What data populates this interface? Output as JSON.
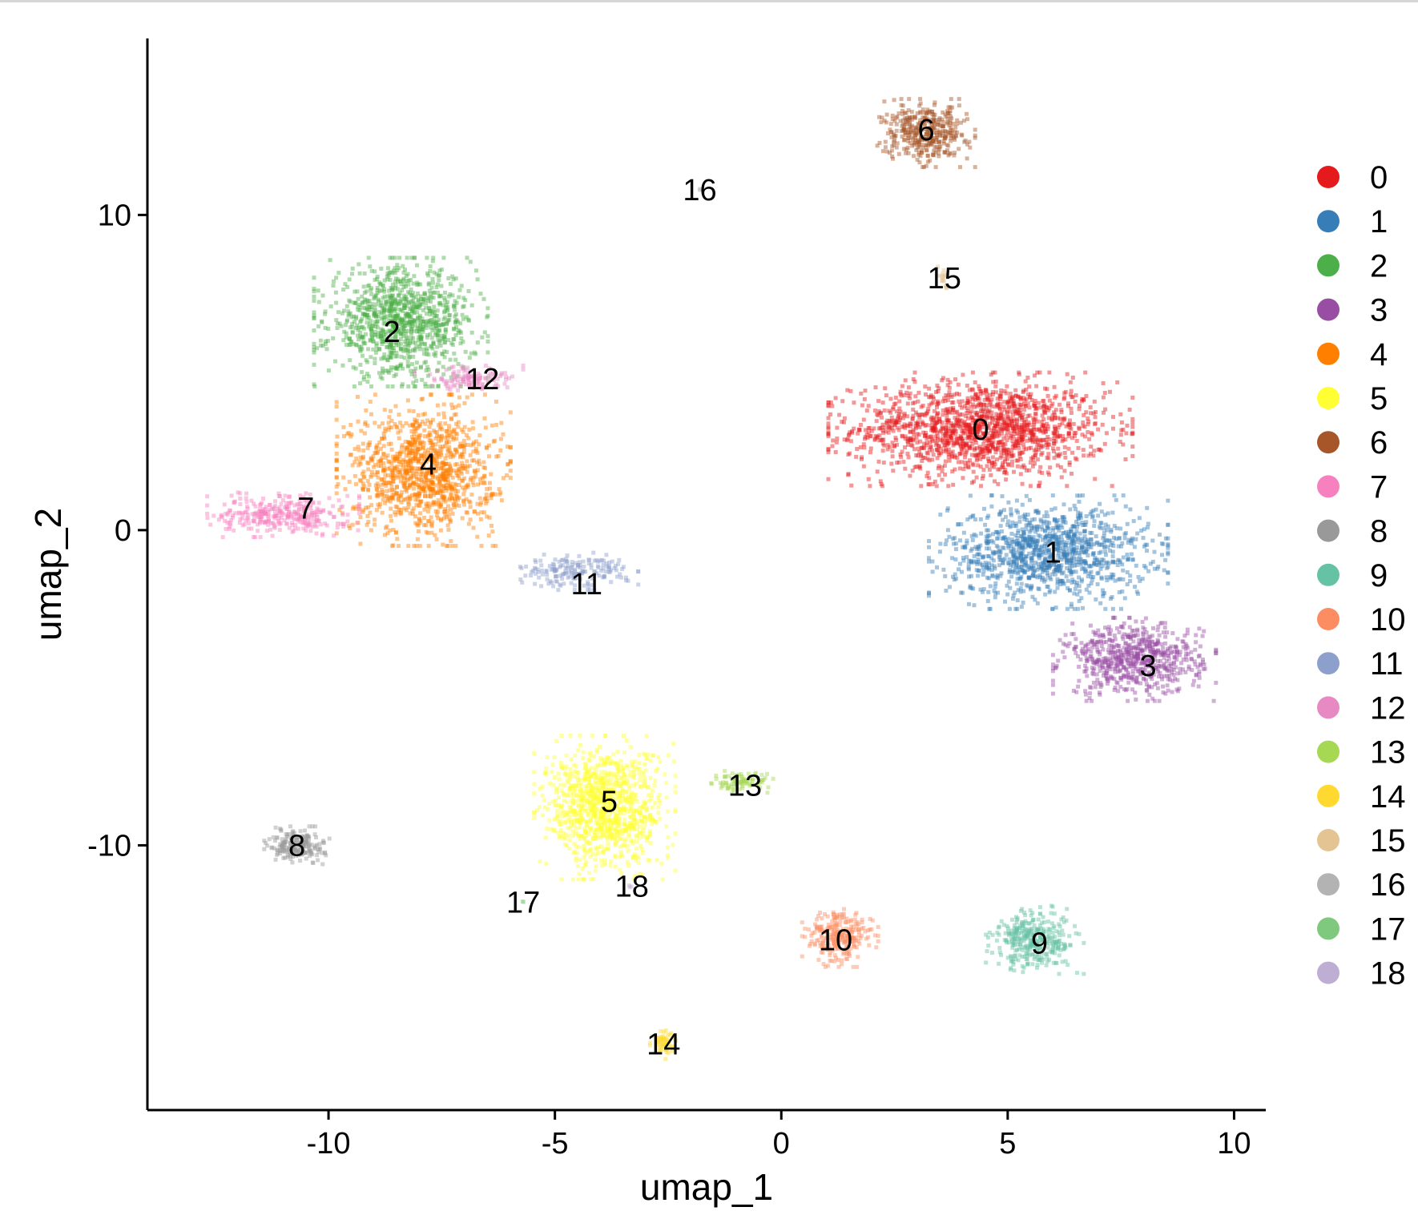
{
  "chart_data": {
    "type": "scatter",
    "title": "",
    "xlabel": "umap_1",
    "ylabel": "umap_2",
    "xlim": [
      -14,
      10.7
    ],
    "ylim": [
      -18.4,
      15.6
    ],
    "x_ticks": [
      -10,
      -5,
      0,
      5,
      10
    ],
    "y_ticks": [
      -10,
      0,
      10
    ],
    "x_tick_labels": [
      "-10",
      "-5",
      "0",
      "5",
      "10"
    ],
    "y_tick_labels": [
      "-10",
      "0",
      "10"
    ],
    "grid": false,
    "legend_position": "right",
    "point_alpha": 0.45,
    "clusters": [
      {
        "name": "0",
        "color": "#e41a1c",
        "x": 4.4,
        "y": 3.2,
        "label_x": 4.4,
        "label_y": 3.2,
        "sx": 2.8,
        "sy": 1.5,
        "n": 1500
      },
      {
        "name": "1",
        "color": "#377eb8",
        "x": 5.9,
        "y": -0.7,
        "label_x": 6.0,
        "label_y": -0.7,
        "sx": 2.2,
        "sy": 1.5,
        "n": 1100
      },
      {
        "name": "2",
        "color": "#4daf4a",
        "x": -8.4,
        "y": 6.6,
        "label_x": -8.6,
        "label_y": 6.3,
        "sx": 1.6,
        "sy": 1.7,
        "n": 1000
      },
      {
        "name": "3",
        "color": "#984ea3",
        "x": 7.8,
        "y": -4.1,
        "label_x": 8.1,
        "label_y": -4.3,
        "sx": 1.5,
        "sy": 1.1,
        "n": 650
      },
      {
        "name": "4",
        "color": "#ff7f00",
        "x": -7.9,
        "y": 1.9,
        "label_x": -7.8,
        "label_y": 2.1,
        "sx": 1.6,
        "sy": 2.0,
        "n": 1100
      },
      {
        "name": "5",
        "color": "#ffff33",
        "x": -3.9,
        "y": -8.8,
        "label_x": -3.8,
        "label_y": -8.6,
        "sx": 1.3,
        "sy": 1.9,
        "n": 1000
      },
      {
        "name": "6",
        "color": "#a65628",
        "x": 3.2,
        "y": 12.6,
        "label_x": 3.2,
        "label_y": 12.7,
        "sx": 0.9,
        "sy": 0.9,
        "n": 380
      },
      {
        "name": "7",
        "color": "#f781bf",
        "x": -11.0,
        "y": 0.5,
        "label_x": -10.5,
        "label_y": 0.7,
        "sx": 1.4,
        "sy": 0.6,
        "n": 320
      },
      {
        "name": "8",
        "color": "#999999",
        "x": -10.7,
        "y": -10.0,
        "label_x": -10.7,
        "label_y": -10.0,
        "sx": 0.6,
        "sy": 0.5,
        "n": 200
      },
      {
        "name": "9",
        "color": "#66c2a5",
        "x": 5.6,
        "y": -13.0,
        "label_x": 5.7,
        "label_y": -13.1,
        "sx": 0.9,
        "sy": 0.9,
        "n": 340
      },
      {
        "name": "10",
        "color": "#fc8d62",
        "x": 1.3,
        "y": -12.9,
        "label_x": 1.2,
        "label_y": -13.0,
        "sx": 0.7,
        "sy": 0.8,
        "n": 260
      },
      {
        "name": "11",
        "color": "#8da0cb",
        "x": -4.6,
        "y": -1.3,
        "label_x": -4.3,
        "label_y": -1.7,
        "sx": 1.2,
        "sy": 0.5,
        "n": 180
      },
      {
        "name": "12",
        "color": "#e78ac3",
        "x": -6.9,
        "y": 4.8,
        "label_x": -6.6,
        "label_y": 4.8,
        "sx": 1.0,
        "sy": 0.35,
        "n": 120
      },
      {
        "name": "13",
        "color": "#a6d854",
        "x": -0.9,
        "y": -8.0,
        "label_x": -0.8,
        "label_y": -8.1,
        "sx": 0.6,
        "sy": 0.3,
        "n": 90
      },
      {
        "name": "14",
        "color": "#ffd92f",
        "x": -2.6,
        "y": -16.3,
        "label_x": -2.6,
        "label_y": -16.3,
        "sx": 0.25,
        "sy": 0.4,
        "n": 60
      },
      {
        "name": "15",
        "color": "#e5c494",
        "x": 3.6,
        "y": 8.0,
        "label_x": 3.6,
        "label_y": 8.0,
        "sx": 0.12,
        "sy": 0.3,
        "n": 18
      },
      {
        "name": "16",
        "color": "#b3b3b3",
        "x": -1.8,
        "y": 10.8,
        "label_x": -1.8,
        "label_y": 10.8,
        "sx": 0.05,
        "sy": 0.05,
        "n": 2
      },
      {
        "name": "17",
        "color": "#7fc97f",
        "x": -5.7,
        "y": -11.8,
        "label_x": -5.7,
        "label_y": -11.8,
        "sx": 0.05,
        "sy": 0.05,
        "n": 2
      },
      {
        "name": "18",
        "color": "#beaed4",
        "x": -3.3,
        "y": -11.3,
        "label_x": -3.3,
        "label_y": -11.3,
        "sx": 0.05,
        "sy": 0.05,
        "n": 3
      }
    ]
  }
}
